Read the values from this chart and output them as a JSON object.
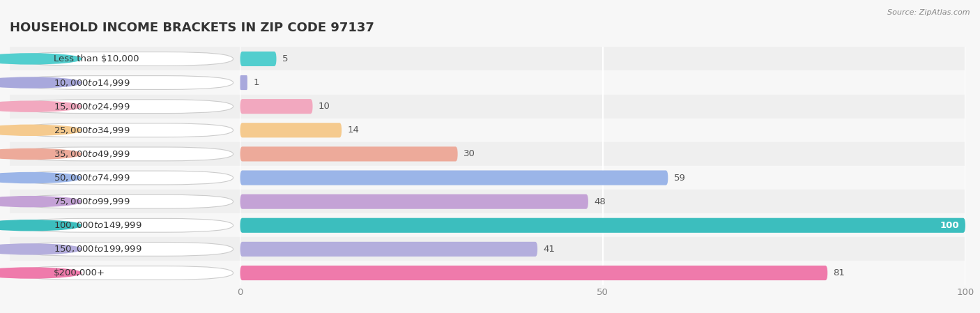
{
  "title": "HOUSEHOLD INCOME BRACKETS IN ZIP CODE 97137",
  "source": "Source: ZipAtlas.com",
  "categories": [
    "Less than $10,000",
    "$10,000 to $14,999",
    "$15,000 to $24,999",
    "$25,000 to $34,999",
    "$35,000 to $49,999",
    "$50,000 to $74,999",
    "$75,000 to $99,999",
    "$100,000 to $149,999",
    "$150,000 to $199,999",
    "$200,000+"
  ],
  "values": [
    5,
    1,
    10,
    14,
    30,
    59,
    48,
    100,
    41,
    81
  ],
  "bar_colors": [
    "#52CECE",
    "#A8A8DC",
    "#F2A8BF",
    "#F5CA8E",
    "#EDAA9A",
    "#9BB5E8",
    "#C4A2D6",
    "#3CBEBE",
    "#B4AEDD",
    "#EF7AAB"
  ],
  "xlim": [
    0,
    100
  ],
  "xticks": [
    0,
    50,
    100
  ],
  "bg_color": "#f7f7f7",
  "row_colors": [
    "#efefef",
    "#f7f7f7"
  ],
  "title_fontsize": 13,
  "label_fontsize": 9.5,
  "value_fontsize": 9.5
}
